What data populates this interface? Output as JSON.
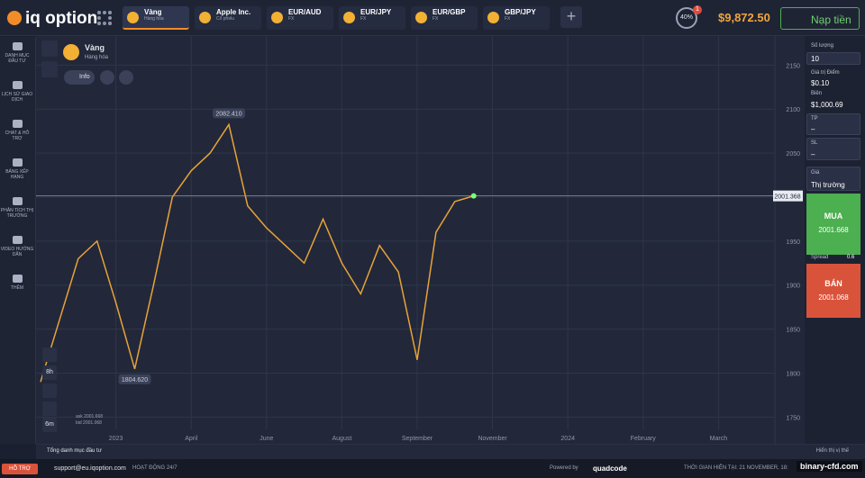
{
  "top_bar": {
    "logo": "iq option",
    "tabs": [
      {
        "name": "Vàng",
        "sub": "Hàng hóa"
      },
      {
        "name": "Apple Inc.",
        "sub": "Cổ phiếu"
      },
      {
        "name": "EUR/AUD",
        "sub": "FX"
      },
      {
        "name": "EUR/JPY",
        "sub": "FX"
      },
      {
        "name": "EUR/GBP",
        "sub": "FX"
      },
      {
        "name": "GBP/JPY",
        "sub": "FX"
      }
    ],
    "notification_count": "1",
    "progress": "40%",
    "balance": "$9,872.50",
    "deposit": "Nạp tiền"
  },
  "sidebar": [
    "DANH MỤC ĐẦU TƯ",
    "LỊCH SỬ GIAO DỊCH",
    "CHAT & HỖ TRỢ",
    "BẢNG XẾP HẠNG",
    "PHÂN TÍCH THỊ TRƯỜNG",
    "VIDEO HƯỚNG DẪN",
    "THÊM"
  ],
  "asset": {
    "name": "Vàng",
    "category": "Hàng hóa",
    "info": "Info"
  },
  "chart_tools": [
    "8h",
    "6m"
  ],
  "quote": {
    "ask": "ask 2001.668",
    "bid": "bid 2001.068"
  },
  "chart_data": {
    "type": "line",
    "color": "#e8a23a",
    "categories": [
      null,
      null,
      null,
      null,
      "2023",
      null,
      null,
      null,
      "April",
      null,
      null,
      null,
      "June",
      null,
      null,
      null,
      "August",
      null,
      null,
      null,
      "September",
      null,
      null,
      null,
      "November",
      null,
      null,
      null,
      "2024",
      null,
      null,
      null,
      "February",
      null,
      null,
      null,
      "March",
      null,
      null,
      null
    ],
    "values": [
      1790,
      1860,
      1930,
      1950,
      1880,
      1804.62,
      1900,
      2000,
      2030,
      2050,
      2082.41,
      1990,
      1965,
      1945,
      1925,
      1975,
      1925,
      1890,
      1945,
      1915,
      1815,
      1960,
      1995,
      2001.368,
      null,
      null,
      null,
      null,
      null,
      null,
      null,
      null,
      null,
      null,
      null,
      null,
      null,
      null,
      null,
      null
    ],
    "value_labels": [
      null,
      null,
      null,
      null,
      null,
      "1804.620",
      null,
      null,
      null,
      null,
      "2082.410",
      null,
      null,
      null,
      null,
      null,
      null,
      null,
      null,
      null,
      null,
      null,
      null,
      null,
      null,
      null,
      null,
      null,
      null,
      null,
      null,
      null,
      null,
      null,
      null,
      null,
      null,
      null,
      null,
      null
    ],
    "last_price": {
      "value": 2001.368,
      "label": "2001.368"
    },
    "ylim": [
      1736,
      2178
    ],
    "yticks": [
      1750,
      1800,
      1850,
      1900,
      1950,
      2000,
      2050,
      2100,
      2150
    ],
    "grid": true
  },
  "order_panel": {
    "amount_label": "Số lượng",
    "amount": "10",
    "point_value_label": "Giá trị Điểm",
    "point_value": "$0.10",
    "margin_label": "Biên",
    "margin": "$1,000.69",
    "tp_label": "TP",
    "tp": "–",
    "sl_label": "SL",
    "sl": "–",
    "price_label": "Giá",
    "price": "Thị trường",
    "buy": "MUA",
    "buy_price": "2001.668",
    "spread_label": "Spread",
    "spread": "0.6",
    "sell": "BÁN",
    "sell_price": "2001.068"
  },
  "bottom_bar": {
    "portfolio": "Tổng danh mục đầu tư",
    "show_positions": "Hiển thị vị thế"
  },
  "footer": {
    "support": "HỖ TRỢ",
    "email": "support@eu.iqoption.com",
    "hours": "HOẠT ĐỘNG 24/7",
    "powered_by": "Powered by",
    "brand": "quadcode",
    "time": "THỜI GIAN HIỆN TẠI: 21 NOVEMBER, 18:"
  },
  "watermark": "binary-cfd.com"
}
